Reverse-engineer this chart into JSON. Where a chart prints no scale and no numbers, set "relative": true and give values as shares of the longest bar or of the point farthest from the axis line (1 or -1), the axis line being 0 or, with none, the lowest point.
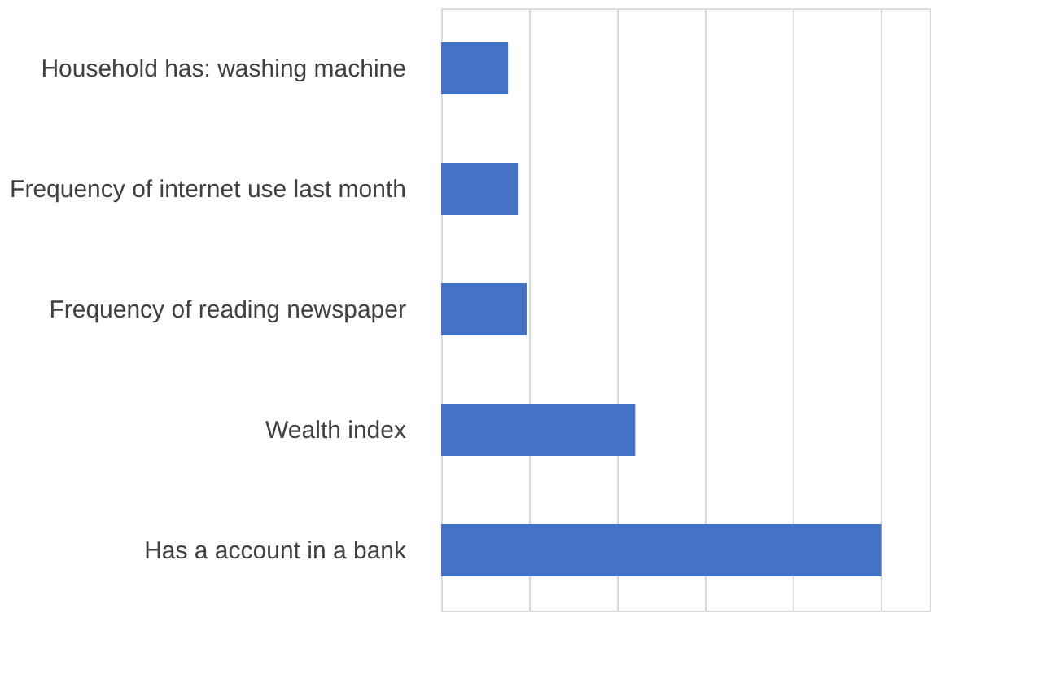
{
  "chart_data": {
    "type": "bar",
    "orientation": "horizontal",
    "relative": true,
    "categories": [
      "Household has: washing machine",
      "Frequency of internet use last month",
      "Frequency of reading newspaper",
      "Wealth index",
      "Has a account in a bank"
    ],
    "values": [
      0.152,
      0.176,
      0.195,
      0.441,
      1
    ],
    "color": "#4472c4",
    "grid": "x"
  }
}
